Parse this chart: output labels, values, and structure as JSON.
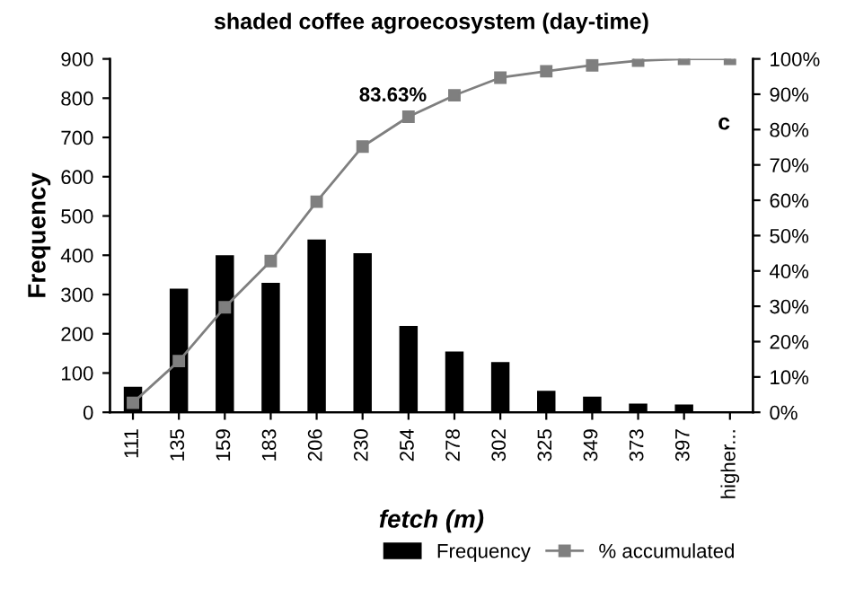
{
  "chart_data": {
    "type": "bar",
    "title": "shaded coffee agroecosystem (day-time)",
    "xlabel": "fetch (m)",
    "ylabel": "Frequency",
    "categories": [
      "111",
      "135",
      "159",
      "183",
      "206",
      "230",
      "254",
      "278",
      "302",
      "325",
      "349",
      "373",
      "397",
      "higher..."
    ],
    "series": [
      {
        "name": "Frequency",
        "color": "#000000",
        "values": [
          65,
          315,
          400,
          330,
          440,
          405,
          220,
          155,
          128,
          55,
          40,
          22,
          20,
          0
        ]
      },
      {
        "name": "% accumulated",
        "type": "line",
        "axis": "y2",
        "color": "#7f7f7f",
        "marker": "square",
        "values": [
          2.7,
          14.5,
          29.7,
          42.8,
          59.6,
          75.2,
          83.63,
          89.7,
          94.7,
          96.5,
          98.2,
          99.5,
          100,
          100
        ]
      }
    ],
    "annotations": [
      "83.63%",
      "c"
    ],
    "ylim": [
      0,
      900
    ],
    "yticks": [
      0,
      100,
      200,
      300,
      400,
      500,
      600,
      700,
      800,
      900
    ],
    "y2lim": [
      0,
      100
    ],
    "y2ticks": [
      {
        "value": 0,
        "label": "0%"
      },
      {
        "value": 10,
        "label": "10%"
      },
      {
        "value": 20,
        "label": "20%"
      },
      {
        "value": 30,
        "label": "30%"
      },
      {
        "value": 40,
        "label": "40%"
      },
      {
        "value": 50,
        "label": "50%"
      },
      {
        "value": 60,
        "label": "60%"
      },
      {
        "value": 70,
        "label": "70%"
      },
      {
        "value": 80,
        "label": "80%"
      },
      {
        "value": 90,
        "label": "90%"
      },
      {
        "value": 100,
        "label": "100%"
      }
    ],
    "legend": "bottom right",
    "grid": false
  }
}
